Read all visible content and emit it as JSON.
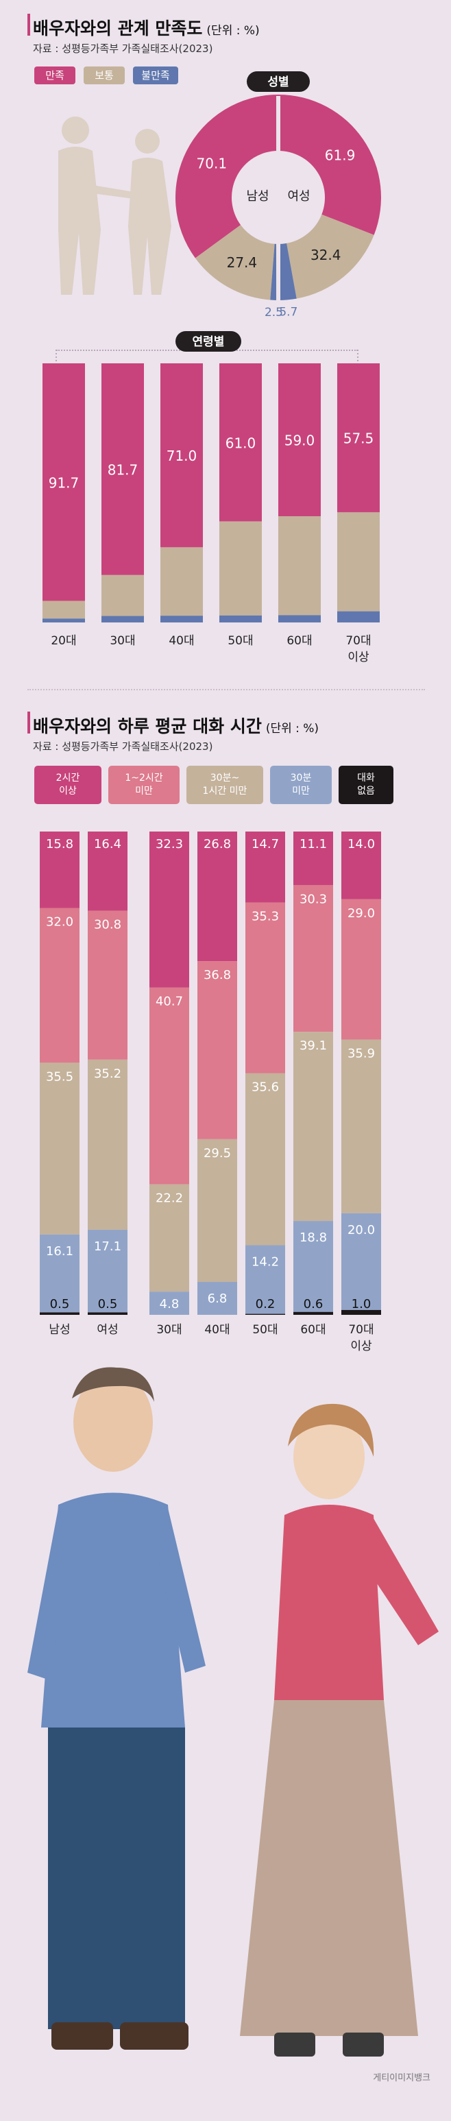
{
  "colors": {
    "satisfied": "#c8437b",
    "neutral": "#c4b29b",
    "dissatisfied": "#5f77ae",
    "c2h": "#c8437b",
    "c1to2": "#dd7a8d",
    "c30to1": "#c4b29b",
    "cunder30": "#91a4c8",
    "cnone": "#1c1718",
    "background": "#ece3ec",
    "accent": "#c74079"
  },
  "section1": {
    "title": "배우자와의 관계 만족도",
    "unit": "(단위 : %)",
    "source": "자료 : 성평등가족부 가족실태조사(2023)",
    "legend": [
      "만족",
      "보통",
      "불만족"
    ],
    "gender_label": "성별",
    "age_label": "연령별"
  },
  "section2": {
    "title": "배우자와의 하루 평균 대화 시간",
    "unit": "(단위 : %)",
    "source": "자료 : 성평등가족부 가족실태조사(2023)",
    "legend": [
      "2시간\n이상",
      "1~2시간\n미만",
      "30분~\n1시간 미만",
      "30분\n미만",
      "대화\n없음"
    ]
  },
  "watermark": "게티이미지뱅크",
  "chart_data": [
    {
      "type": "pie",
      "title": "성별",
      "halves": [
        {
          "name": "남성",
          "values": [
            70.1,
            27.4,
            2.5
          ],
          "labels": [
            "70.1",
            "27.4",
            "2.5"
          ]
        },
        {
          "name": "여성",
          "values": [
            61.9,
            32.4,
            5.7
          ],
          "labels": [
            "61.9",
            "32.4",
            "5.7"
          ]
        }
      ],
      "categories": [
        "만족",
        "보통",
        "불만족"
      ]
    },
    {
      "type": "bar",
      "stacked": true,
      "title": "연령별",
      "categories": [
        "20대",
        "30대",
        "40대",
        "50대",
        "60대",
        "70대\n이상"
      ],
      "series": [
        {
          "name": "만족",
          "values": [
            91.7,
            81.7,
            71.0,
            61.0,
            59.0,
            57.5
          ],
          "labels": [
            "91.7",
            "81.7",
            "71.0",
            "61.0",
            "59.0",
            "57.5"
          ]
        },
        {
          "name": "보통",
          "values": [
            6.8,
            15.8,
            26.4,
            36.3,
            38.2,
            38.2
          ]
        },
        {
          "name": "불만족",
          "values": [
            1.5,
            2.5,
            2.6,
            2.7,
            2.8,
            4.3
          ]
        }
      ],
      "ylim": [
        0,
        100
      ]
    },
    {
      "type": "bar",
      "stacked": true,
      "categories": [
        "남성",
        "여성",
        "30대",
        "40대",
        "50대",
        "60대",
        "70대\n이상"
      ],
      "series": [
        {
          "name": "2시간 이상",
          "values": [
            15.8,
            16.4,
            32.3,
            26.8,
            14.7,
            11.1,
            14.0
          ],
          "labels": [
            "15.8",
            "16.4",
            "32.3",
            "26.8",
            "14.7",
            "11.1",
            "14.0"
          ]
        },
        {
          "name": "1~2시간 미만",
          "values": [
            32.0,
            30.8,
            40.7,
            36.8,
            35.3,
            30.3,
            29.0
          ],
          "labels": [
            "32.0",
            "30.8",
            "40.7",
            "36.8",
            "35.3",
            "30.3",
            "29.0"
          ]
        },
        {
          "name": "30분~1시간 미만",
          "values": [
            35.5,
            35.2,
            22.2,
            29.5,
            35.6,
            39.1,
            35.9
          ],
          "labels": [
            "35.5",
            "35.2",
            "22.2",
            "29.5",
            "35.6",
            "39.1",
            "35.9"
          ]
        },
        {
          "name": "30분 미만",
          "values": [
            16.1,
            17.1,
            4.8,
            6.8,
            14.2,
            18.8,
            20.0
          ],
          "labels": [
            "16.1",
            "17.1",
            "4.8",
            "6.8",
            "14.2",
            "18.8",
            "20.0"
          ]
        },
        {
          "name": "대화 없음",
          "values": [
            0.5,
            0.5,
            0.0,
            0.0,
            0.2,
            0.6,
            1.0
          ],
          "labels": [
            "0.5",
            "0.5",
            "",
            "",
            "0.2",
            "0.6",
            "1.0"
          ]
        }
      ],
      "ylim": [
        0,
        100
      ]
    }
  ]
}
